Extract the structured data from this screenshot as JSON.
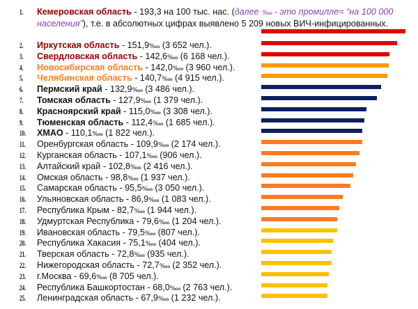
{
  "unit": "‱",
  "first": {
    "rank": "1.",
    "name": "Кемеровская область",
    "value_text": " - 193,3 на 100 тыс. нас. (",
    "note_a": "далее ",
    "note_unit": "‱",
    "note_b": " - это промилле= “на 100 000 населения”",
    "rest": "), т.е. в абсолютных цифрах выявлено 5 209 новых ВИЧ-инфицированных."
  },
  "chart_data": {
    "type": "bar",
    "orientation": "horizontal",
    "title": "",
    "xlabel": "",
    "ylabel": "",
    "categories": [
      "Кемеровская область",
      "Иркутская область",
      "Свердловская область",
      "Новосибирская область",
      "Челябинская область",
      "Пермский край",
      "Томская область",
      "Красноярский край",
      "Тюменская область",
      "ХМАО",
      "Оренбургская область",
      "Курганская область",
      "Алтайский край",
      "Омская область",
      "Самарская область",
      "Ульяновская область",
      "Республика Крым",
      "Удмуртская Республика",
      "Ивановская область",
      "Республика Хакасия",
      "Тверская область",
      "Нижегородская область",
      "г.Москва",
      "Республика Башкортостан",
      "Ленинградская область"
    ],
    "values": [
      193.3,
      151.9,
      142.6,
      142.0,
      140.7,
      132.9,
      127.9,
      115.0,
      112.4,
      110.1,
      109.9,
      107.1,
      102.8,
      98.8,
      95.5,
      86.9,
      82.7,
      79.6,
      79.5,
      75.1,
      72.8,
      72.7,
      69.6,
      68.0,
      67.9
    ],
    "counts": [
      "5 209",
      "3 652",
      "6 168",
      "3 960",
      "4 915",
      "3 486",
      "1 379",
      "3 308",
      "1 685",
      "1 822",
      "2 174",
      "906",
      "2 416",
      "1 937",
      "3 050",
      "1 083",
      "1 944",
      "1 204",
      "807",
      "404",
      "935",
      "2 352",
      "8 705",
      "2 763",
      "1 232"
    ],
    "groups": [
      1,
      1,
      1,
      2,
      2,
      3,
      3,
      3,
      3,
      3,
      4,
      4,
      4,
      4,
      4,
      4,
      4,
      4,
      5,
      5,
      5,
      5,
      5,
      5,
      5
    ],
    "group_colors": {
      "1": "#e00000",
      "2": "#ff9900",
      "3": "#0b1f5e",
      "4": "#ff7a22",
      "5": "#ffc000"
    }
  }
}
